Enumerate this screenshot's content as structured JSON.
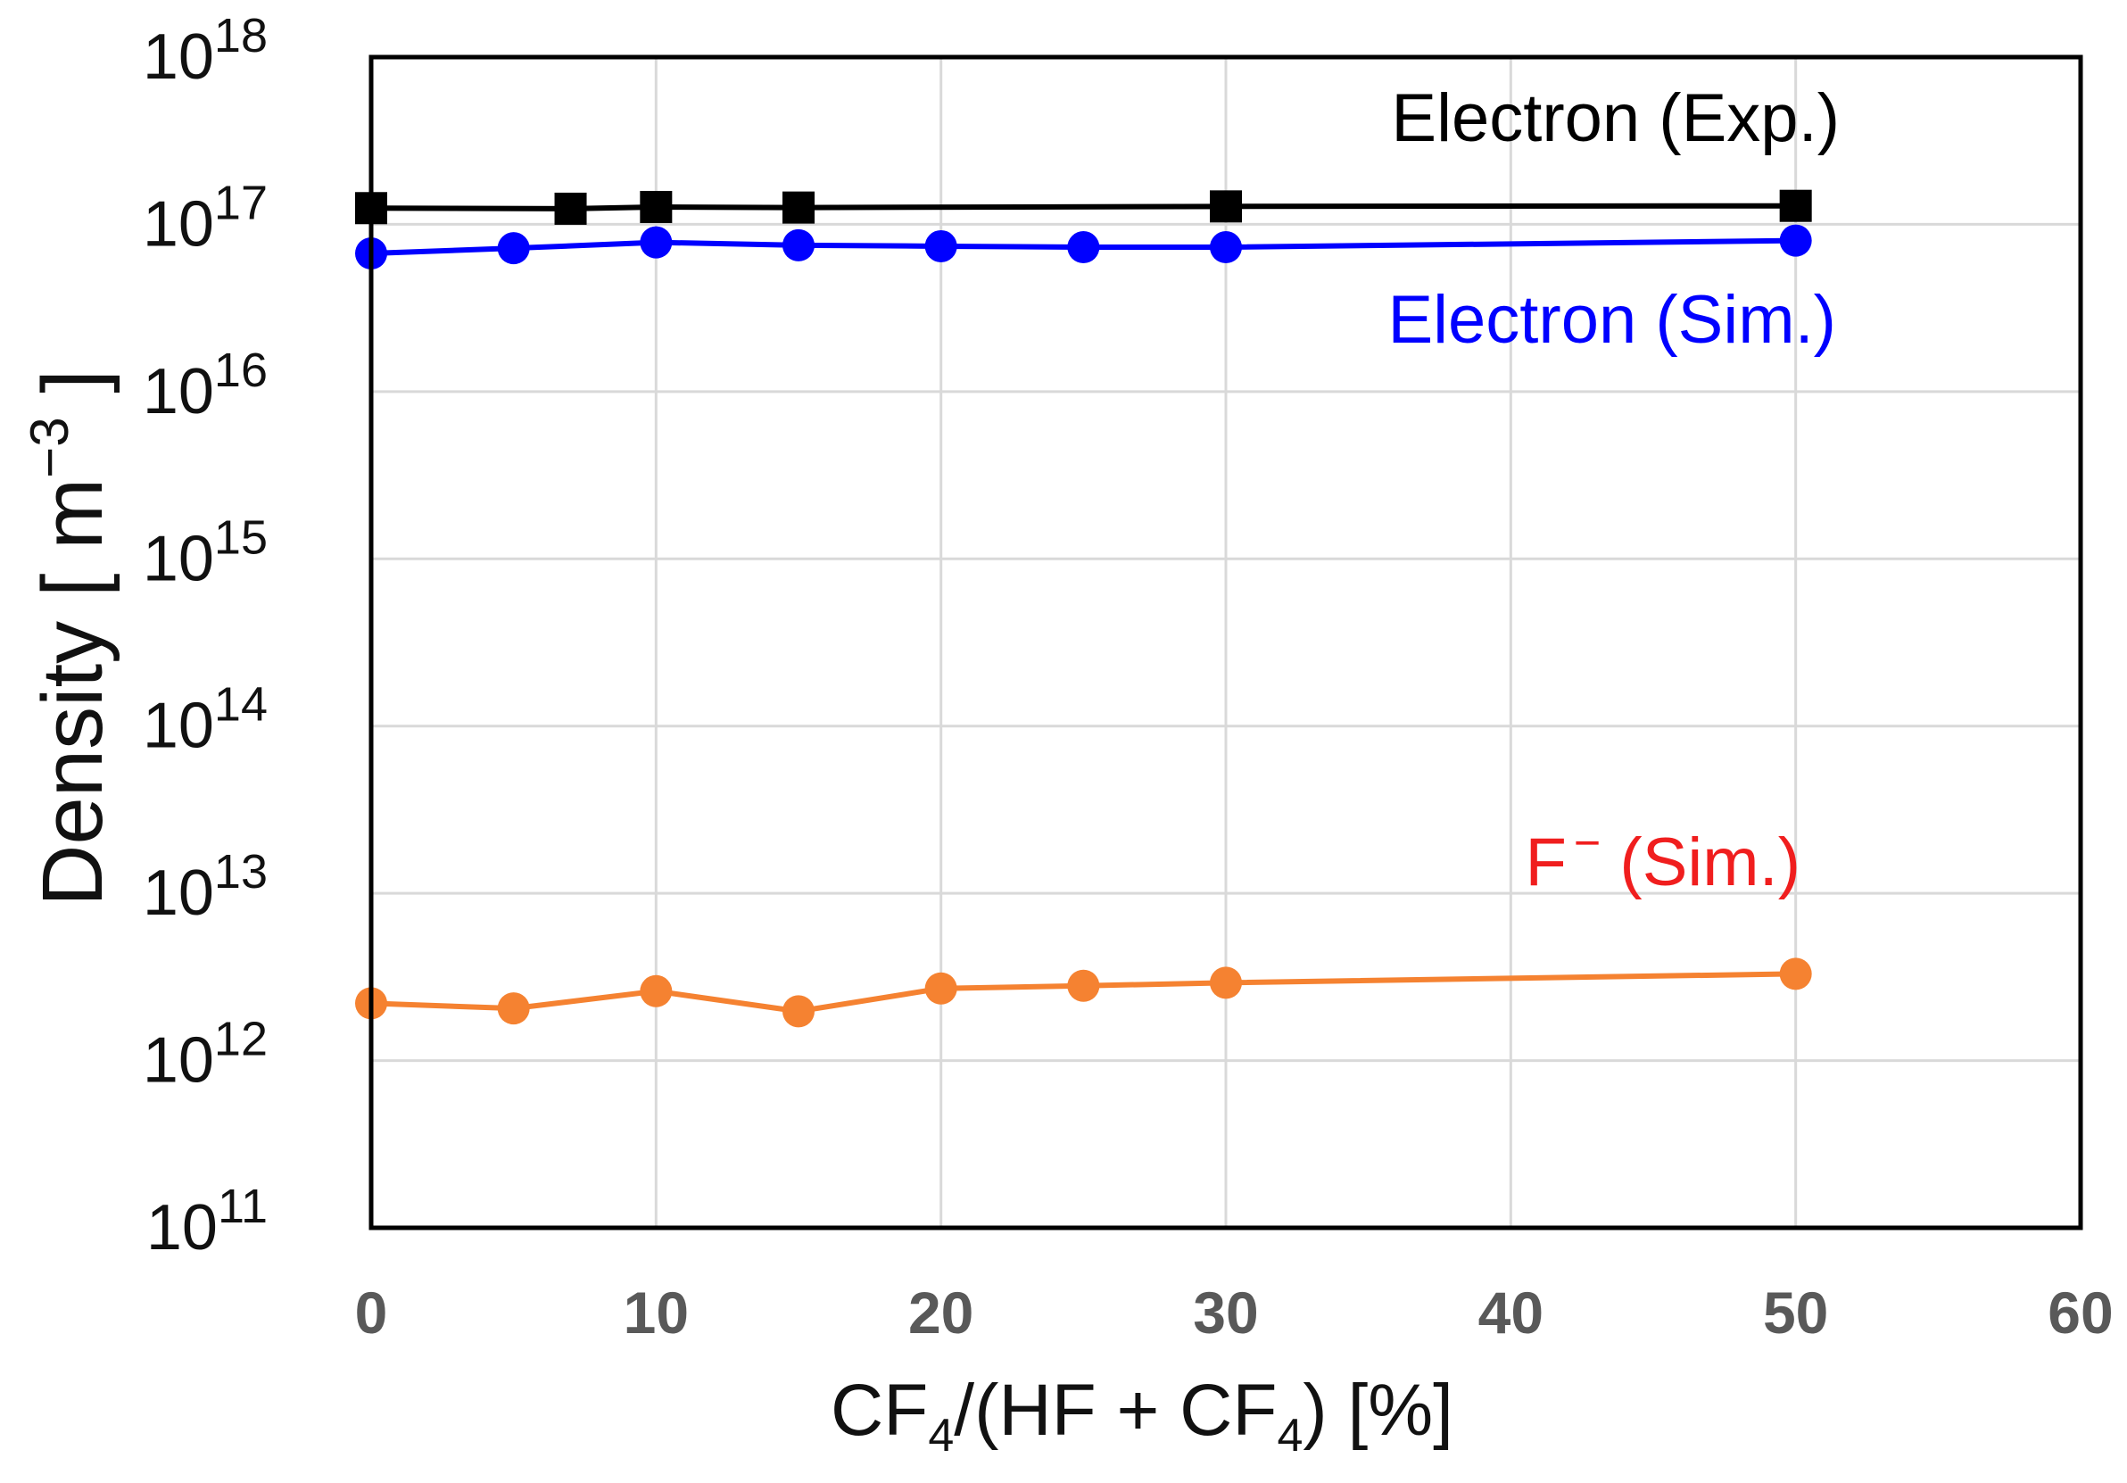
{
  "chart_data": {
    "type": "line",
    "y_scale": "log",
    "xlim": [
      0,
      60
    ],
    "ylim": [
      100000000000.0,
      1e+18
    ],
    "x_ticks": [
      0,
      10,
      20,
      30,
      40,
      50,
      60
    ],
    "x_tick_labels": [
      "0",
      "10",
      "20",
      "30",
      "40",
      "50",
      "60"
    ],
    "y_ticks": [
      {
        "base": "10",
        "exp": "11",
        "value": 100000000000.0
      },
      {
        "base": "10",
        "exp": "12",
        "value": 1000000000000.0
      },
      {
        "base": "10",
        "exp": "13",
        "value": 10000000000000.0
      },
      {
        "base": "10",
        "exp": "14",
        "value": 100000000000000.0
      },
      {
        "base": "10",
        "exp": "15",
        "value": 1000000000000000.0
      },
      {
        "base": "10",
        "exp": "16",
        "value": 1e+16
      },
      {
        "base": "10",
        "exp": "17",
        "value": 1e+17
      },
      {
        "base": "10",
        "exp": "18",
        "value": 1e+18
      }
    ],
    "xlabel": {
      "prefix": "CF",
      "sub1": "4",
      "middle": "/(HF + CF",
      "sub2": "4",
      "suffix": ") [%]"
    },
    "ylabel": {
      "text": "Density [ m",
      "sup": "−3",
      "close": " ]"
    },
    "grid": true,
    "series": [
      {
        "name": "Electron (Exp.)",
        "label_main": "Electron (Exp.)",
        "label_sup": "",
        "label_rest": "",
        "color": "#000000",
        "label_color": "#000000",
        "marker": "square",
        "x": [
          0,
          7,
          10,
          15,
          30,
          50
        ],
        "values": [
          1.25e+17,
          1.24e+17,
          1.27e+17,
          1.26e+17,
          1.28e+17,
          1.29e+17
        ]
      },
      {
        "name": "Electron (Sim.)",
        "label_main": "Electron (Sim.)",
        "label_sup": "",
        "label_rest": "",
        "color": "#0000ff",
        "label_color": "#0000ff",
        "marker": "circle",
        "x": [
          0,
          5,
          10,
          15,
          20,
          25,
          30,
          50
        ],
        "values": [
          6.7e+16,
          7.2e+16,
          7.8e+16,
          7.5e+16,
          7.4e+16,
          7.3e+16,
          7.3e+16,
          8e+16
        ]
      },
      {
        "name": "F− (Sim.)",
        "label_main": "F",
        "label_sup": "−",
        "label_rest": " (Sim.)",
        "color": "#f58231",
        "label_color": "#f01e1e",
        "marker": "circle",
        "x": [
          0,
          5,
          10,
          15,
          20,
          25,
          30,
          50
        ],
        "values": [
          2200000000000.0,
          2050000000000.0,
          2600000000000.0,
          1970000000000.0,
          2700000000000.0,
          2800000000000.0,
          2920000000000.0,
          3300000000000.0
        ]
      }
    ]
  }
}
